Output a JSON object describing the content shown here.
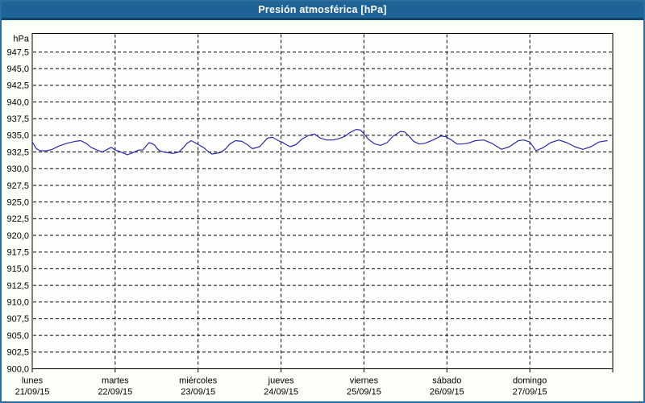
{
  "window": {
    "title": "Presión atmosférica [hPa]"
  },
  "colors": {
    "window_border": "#2E6D99",
    "titlebar_bg": "#1E6396",
    "titlebar_text": "#FFFFFF",
    "titlebar_divider": "#12466E",
    "content_bg": "#FCFEF8",
    "plot_bg": "#FEFFFC",
    "frame": "#000000",
    "grid": "#000000",
    "label_text": "#000000",
    "line": "#2A2AB0"
  },
  "chart_data": {
    "type": "line",
    "title": "Presión atmosférica [hPa]",
    "ylabel": "hPa",
    "y_axis": {
      "min": 900.0,
      "max": 947.5,
      "step": 2.5,
      "unit_label": "hPa",
      "tick_labels_top_to_bottom": [
        "947,5",
        "945,0",
        "942,5",
        "940,0",
        "937,5",
        "935,0",
        "932,5",
        "930,0",
        "927,5",
        "925,0",
        "922,5",
        "920,0",
        "917,5",
        "915,0",
        "912,5",
        "910,0",
        "907,5",
        "905,0",
        "902,5",
        "900,0"
      ]
    },
    "x_axis": {
      "total_hours": 168,
      "labels_at": "day_start_ticks",
      "day_ticks": [
        {
          "name": "lunes",
          "date": "21/09/15"
        },
        {
          "name": "martes",
          "date": "22/09/15"
        },
        {
          "name": "miércoles",
          "date": "23/09/15"
        },
        {
          "name": "jueves",
          "date": "24/09/15"
        },
        {
          "name": "viernes",
          "date": "25/09/15"
        },
        {
          "name": "sábado",
          "date": "26/09/15"
        },
        {
          "name": "domingo",
          "date": "27/09/15"
        }
      ]
    },
    "grid": {
      "horizontal": "dashed",
      "vertical": "dashed",
      "legend": "none"
    },
    "series": [
      {
        "name": "Presión atmosférica",
        "unit": "hPa",
        "color": "#2A2AB0",
        "points_hours_hpa": [
          [
            0,
            934.0
          ],
          [
            1.2,
            933.0
          ],
          [
            2.3,
            932.7
          ],
          [
            4.2,
            932.7
          ],
          [
            5.8,
            932.9
          ],
          [
            7.7,
            933.4
          ],
          [
            10,
            933.8
          ],
          [
            12.4,
            934.1
          ],
          [
            14,
            934.2
          ],
          [
            15.6,
            933.8
          ],
          [
            17,
            933.2
          ],
          [
            18.7,
            932.8
          ],
          [
            20.3,
            932.5
          ],
          [
            21.7,
            932.9
          ],
          [
            22.9,
            933.2
          ],
          [
            24,
            932.8
          ],
          [
            25.2,
            932.6
          ],
          [
            26.1,
            932.4
          ],
          [
            27.5,
            932.1
          ],
          [
            29.2,
            932.4
          ],
          [
            30.8,
            932.8
          ],
          [
            32,
            932.8
          ],
          [
            33.1,
            933.5
          ],
          [
            33.8,
            933.9
          ],
          [
            34.5,
            933.8
          ],
          [
            35.5,
            933.5
          ],
          [
            36.2,
            933.0
          ],
          [
            36.9,
            932.7
          ],
          [
            38,
            932.5
          ],
          [
            39.2,
            932.4
          ],
          [
            40.8,
            932.3
          ],
          [
            42.5,
            932.5
          ],
          [
            43.6,
            933.1
          ],
          [
            44.8,
            933.8
          ],
          [
            46,
            934.2
          ],
          [
            47.1,
            933.9
          ],
          [
            48.1,
            933.6
          ],
          [
            49.5,
            933.2
          ],
          [
            50.9,
            932.6
          ],
          [
            52,
            932.2
          ],
          [
            54.4,
            932.4
          ],
          [
            56,
            933.0
          ],
          [
            57.2,
            933.7
          ],
          [
            58.8,
            934.2
          ],
          [
            60.7,
            934.1
          ],
          [
            62.5,
            933.5
          ],
          [
            63.7,
            933.0
          ],
          [
            65.8,
            933.3
          ],
          [
            68.1,
            934.6
          ],
          [
            69.5,
            934.7
          ],
          [
            71.6,
            934.1
          ],
          [
            72.3,
            934.0
          ],
          [
            73.5,
            933.6
          ],
          [
            74.7,
            933.3
          ],
          [
            76.3,
            933.6
          ],
          [
            78.2,
            934.5
          ],
          [
            80,
            935.0
          ],
          [
            81.7,
            935.2
          ],
          [
            83.3,
            934.6
          ],
          [
            85.2,
            934.3
          ],
          [
            87,
            934.3
          ],
          [
            88.7,
            934.5
          ],
          [
            90.3,
            934.8
          ],
          [
            92.2,
            935.5
          ],
          [
            93.8,
            935.9
          ],
          [
            95,
            935.8
          ],
          [
            95.9,
            935.3
          ],
          [
            97.3,
            934.4
          ],
          [
            99.2,
            933.7
          ],
          [
            100.8,
            933.5
          ],
          [
            102.7,
            933.9
          ],
          [
            104.5,
            934.9
          ],
          [
            106.6,
            935.6
          ],
          [
            107.8,
            935.5
          ],
          [
            109,
            934.9
          ],
          [
            110.4,
            934.1
          ],
          [
            112,
            933.7
          ],
          [
            113.6,
            933.8
          ],
          [
            116,
            934.3
          ],
          [
            118.3,
            934.9
          ],
          [
            119.7,
            934.8
          ],
          [
            121.3,
            934.3
          ],
          [
            123,
            933.7
          ],
          [
            124.4,
            933.7
          ],
          [
            126,
            933.8
          ],
          [
            128.3,
            934.2
          ],
          [
            130.7,
            934.3
          ],
          [
            133,
            933.8
          ],
          [
            135.8,
            932.9
          ],
          [
            138.1,
            933.3
          ],
          [
            140.7,
            934.2
          ],
          [
            142.3,
            934.3
          ],
          [
            144,
            934.0
          ],
          [
            145.8,
            932.7
          ],
          [
            147.7,
            933.1
          ],
          [
            150,
            933.9
          ],
          [
            152.4,
            934.3
          ],
          [
            154.7,
            933.9
          ],
          [
            157,
            933.3
          ],
          [
            159.4,
            932.9
          ],
          [
            161.7,
            933.3
          ],
          [
            164,
            934.0
          ],
          [
            166.4,
            934.2
          ]
        ]
      }
    ]
  }
}
